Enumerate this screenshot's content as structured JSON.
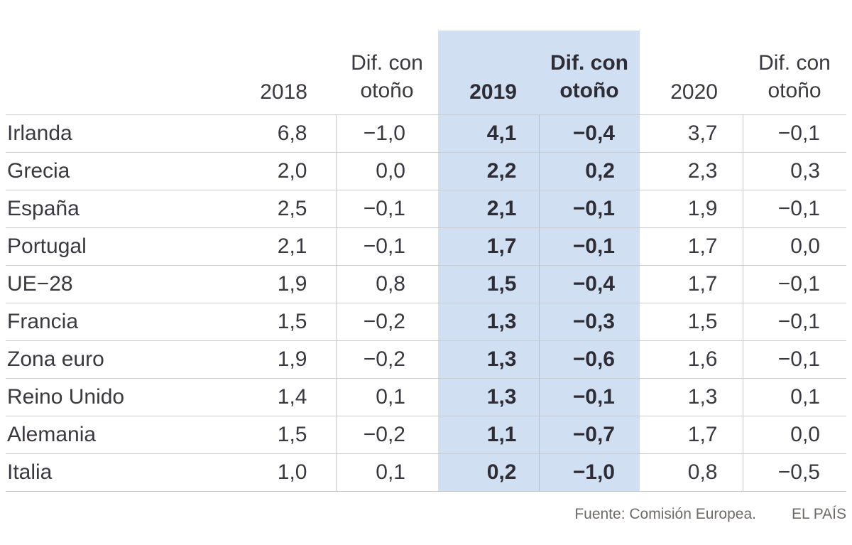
{
  "header": {
    "y2018": "2018",
    "dif2018": "Dif. con\notoño",
    "y2019": "2019",
    "dif2019": "Dif. con\notoño",
    "y2020": "2020",
    "dif2020": "Dif. con\notoño"
  },
  "footer": {
    "source": "Fuente: Comisión Europea.",
    "credit": "EL PAÍS"
  },
  "colors": {
    "highlight": "#d0e0f2",
    "text": "#3b3840",
    "bold_text": "#2e2c34",
    "grid": "#cdcdcd",
    "footer_text": "#6e6a67"
  },
  "chart_data": {
    "type": "table",
    "columns": [
      "",
      "2018",
      "Dif. con otoño",
      "2019",
      "Dif. con otoño",
      "2020",
      "Dif. con otoño"
    ],
    "rows": [
      [
        "Irlanda",
        "6,8",
        "−1,0",
        "4,1",
        "−0,4",
        "3,7",
        "−0,1"
      ],
      [
        "Grecia",
        "2,0",
        "0,0",
        "2,2",
        "0,2",
        "2,3",
        "0,3"
      ],
      [
        "España",
        "2,5",
        "−0,1",
        "2,1",
        "−0,1",
        "1,9",
        "−0,1"
      ],
      [
        "Portugal",
        "2,1",
        "−0,1",
        "1,7",
        "−0,1",
        "1,7",
        "0,0"
      ],
      [
        "UE−28",
        "1,9",
        "0,8",
        "1,5",
        "−0,4",
        "1,7",
        "−0,1"
      ],
      [
        "Francia",
        "1,5",
        "−0,2",
        "1,3",
        "−0,3",
        "1,5",
        "−0,1"
      ],
      [
        "Zona euro",
        "1,9",
        "−0,2",
        "1,3",
        "−0,6",
        "1,6",
        "−0,1"
      ],
      [
        "Reino Unido",
        "1,4",
        "0,1",
        "1,3",
        "−0,1",
        "1,3",
        "0,1"
      ],
      [
        "Alemania",
        "1,5",
        "−0,2",
        "1,1",
        "−0,7",
        "1,7",
        "0,0"
      ],
      [
        "Italia",
        "1,0",
        "0,1",
        "0,2",
        "−1,0",
        "0,8",
        "−0,5"
      ]
    ],
    "highlighted_column_indices": [
      3,
      4
    ],
    "highlight_note": "2019 and its 'Dif. con otoño' columns shaded light blue and bold",
    "source": "Fuente: Comisión Europea.",
    "credit": "EL PAÍS"
  }
}
